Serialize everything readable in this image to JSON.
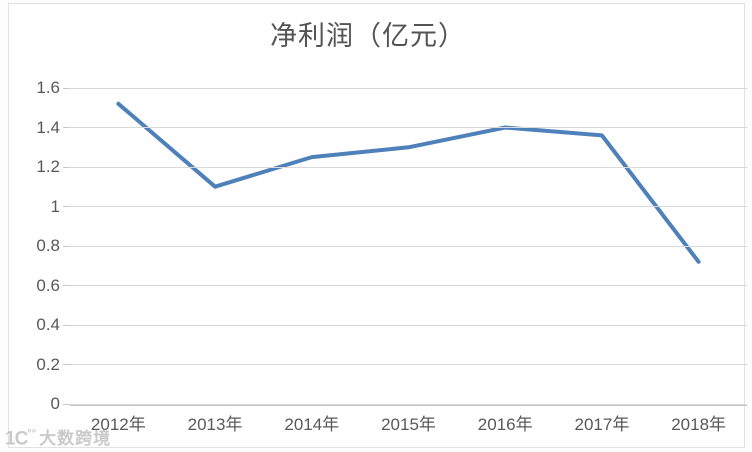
{
  "watermark": {
    "logo_base": "1C",
    "logo_marks": "°°",
    "text": "大数跨境"
  },
  "chart_data": {
    "type": "line",
    "title": "净利润（亿元）",
    "categories": [
      "2012年",
      "2013年",
      "2014年",
      "2015年",
      "2016年",
      "2017年",
      "2018年"
    ],
    "series": [
      {
        "name": "净利润",
        "values": [
          1.52,
          1.1,
          1.25,
          1.3,
          1.4,
          1.36,
          0.72
        ]
      }
    ],
    "xlabel": "",
    "ylabel": "",
    "ylim": [
      0,
      1.6
    ],
    "y_tick_values": [
      0,
      0.2,
      0.4,
      0.6,
      0.8,
      1,
      1.2,
      1.4,
      1.6
    ],
    "y_tick_labels": [
      "0",
      "0.2",
      "0.4",
      "0.6",
      "0.8",
      "1",
      "1.2",
      "1.4",
      "1.6"
    ],
    "grid": true,
    "legend_position": "none",
    "line_color": "#4E80BA",
    "gridline_color": "#D9D9D9",
    "axis_label_color": "#595959",
    "title_color": "#545454"
  }
}
